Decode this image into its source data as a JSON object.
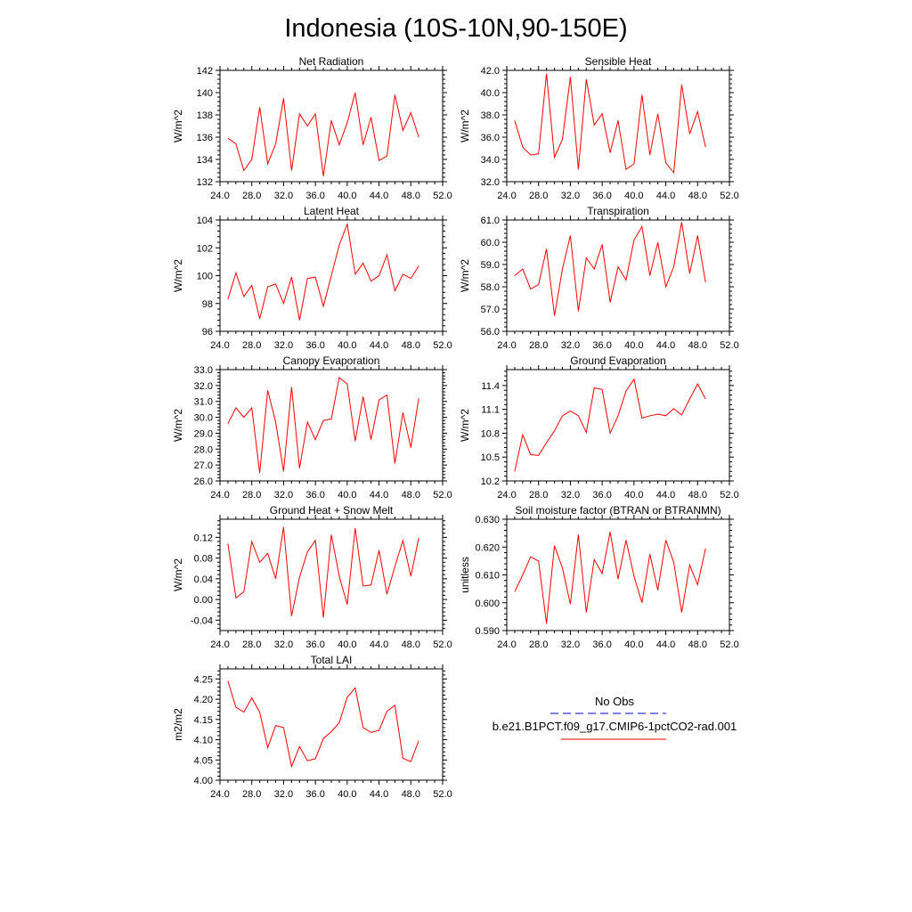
{
  "figure_title": "Indonesia (10S-10N,90-150E)",
  "colors": {
    "model_line": "#ff0000",
    "obs_line": "#0000cc",
    "axes": "#000000"
  },
  "legend": {
    "entries": [
      {
        "label": "No Obs",
        "style": "dashed",
        "color": "#0000cc"
      },
      {
        "label": "b.e21.B1PCT.f09_g17.CMIP6-1pctCO2-rad.001",
        "style": "solid",
        "color": "#ff0000"
      }
    ]
  },
  "chart_data": [
    {
      "type": "line",
      "title": "Net Radiation",
      "ylabel": "W/m^2",
      "xlim": [
        24,
        52
      ],
      "ylim": [
        132,
        142
      ],
      "xticks": [
        24,
        28,
        32,
        36,
        40,
        44,
        48,
        52
      ],
      "xtick_labels": [
        "24.0",
        "28.0",
        "32.0",
        "36.0",
        "40.0",
        "44.0",
        "48.0",
        "52.0"
      ],
      "yticks": [
        132,
        134,
        136,
        138,
        140,
        142
      ],
      "ytick_labels": [
        "132",
        "134",
        "136",
        "138",
        "140",
        "142"
      ],
      "x": [
        25,
        26,
        27,
        28,
        29,
        30,
        31,
        32,
        33,
        34,
        35,
        36,
        37,
        38,
        39,
        40,
        41,
        42,
        43,
        44,
        45,
        46,
        47,
        48,
        49
      ],
      "series": [
        {
          "values": [
            135.9,
            135.4,
            133.0,
            134.0,
            138.7,
            133.6,
            135.4,
            139.5,
            133.0,
            138.1,
            137.0,
            138.1,
            132.5,
            137.5,
            135.3,
            137.3,
            140.0,
            135.3,
            137.8,
            133.9,
            134.3,
            139.8,
            136.6,
            138.2,
            136.0
          ]
        }
      ]
    },
    {
      "type": "line",
      "title": "Sensible Heat",
      "ylabel": "W/m^2",
      "xlim": [
        24,
        52
      ],
      "ylim": [
        32,
        42
      ],
      "xticks": [
        24,
        28,
        32,
        36,
        40,
        44,
        48,
        52
      ],
      "xtick_labels": [
        "24.0",
        "28.0",
        "32.0",
        "36.0",
        "40.0",
        "44.0",
        "48.0",
        "52.0"
      ],
      "yticks": [
        32,
        34,
        36,
        38,
        40,
        42
      ],
      "ytick_labels": [
        "32.0",
        "34.0",
        "36.0",
        "38.0",
        "40.0",
        "42.0"
      ],
      "x": [
        25,
        26,
        27,
        28,
        29,
        30,
        31,
        32,
        33,
        34,
        35,
        36,
        37,
        38,
        39,
        40,
        41,
        42,
        43,
        44,
        45,
        46,
        47,
        48,
        49
      ],
      "series": [
        {
          "values": [
            37.5,
            35.1,
            34.4,
            34.5,
            41.7,
            34.2,
            35.8,
            41.4,
            33.1,
            41.2,
            37.1,
            38.1,
            34.6,
            37.5,
            33.1,
            33.6,
            39.8,
            34.4,
            38.1,
            33.7,
            32.8,
            40.7,
            36.3,
            38.3,
            35.1
          ]
        }
      ]
    },
    {
      "type": "line",
      "title": "Latent Heat",
      "ylabel": "W/m^2",
      "xlim": [
        24,
        52
      ],
      "ylim": [
        96,
        104
      ],
      "xticks": [
        24,
        28,
        32,
        36,
        40,
        44,
        48,
        52
      ],
      "xtick_labels": [
        "24.0",
        "28.0",
        "32.0",
        "36.0",
        "40.0",
        "44.0",
        "48.0",
        "52.0"
      ],
      "yticks": [
        96,
        98,
        100,
        102,
        104
      ],
      "ytick_labels": [
        "96",
        "98",
        "100",
        "102",
        "104"
      ],
      "x": [
        25,
        26,
        27,
        28,
        29,
        30,
        31,
        32,
        33,
        34,
        35,
        36,
        37,
        38,
        39,
        40,
        41,
        42,
        43,
        44,
        45,
        46,
        47,
        48,
        49
      ],
      "series": [
        {
          "values": [
            98.3,
            100.2,
            98.5,
            99.3,
            96.9,
            99.2,
            99.4,
            98.0,
            99.9,
            96.8,
            99.8,
            99.9,
            97.8,
            100.0,
            102.2,
            103.7,
            100.1,
            100.9,
            99.6,
            100.0,
            101.5,
            98.9,
            100.1,
            99.8,
            100.7
          ]
        }
      ]
    },
    {
      "type": "line",
      "title": "Transpiration",
      "ylabel": "W/m^2",
      "xlim": [
        24,
        52
      ],
      "ylim": [
        56,
        61
      ],
      "xticks": [
        24,
        28,
        32,
        36,
        40,
        44,
        48,
        52
      ],
      "xtick_labels": [
        "24.0",
        "28.0",
        "32.0",
        "36.0",
        "40.0",
        "44.0",
        "48.0",
        "52.0"
      ],
      "yticks": [
        56,
        57,
        58,
        59,
        60,
        61
      ],
      "ytick_labels": [
        "56.0",
        "57.0",
        "58.0",
        "59.0",
        "60.0",
        "61.0"
      ],
      "x": [
        25,
        26,
        27,
        28,
        29,
        30,
        31,
        32,
        33,
        34,
        35,
        36,
        37,
        38,
        39,
        40,
        41,
        42,
        43,
        44,
        45,
        46,
        47,
        48,
        49
      ],
      "series": [
        {
          "values": [
            58.5,
            58.8,
            57.9,
            58.1,
            59.7,
            56.7,
            58.8,
            60.3,
            56.9,
            59.3,
            58.8,
            59.9,
            57.3,
            58.9,
            58.3,
            60.1,
            60.7,
            58.5,
            60.0,
            58.0,
            58.9,
            60.9,
            58.6,
            60.3,
            58.2
          ]
        }
      ]
    },
    {
      "type": "line",
      "title": "Canopy Evaporation",
      "ylabel": "W/m^2",
      "xlim": [
        24,
        52
      ],
      "ylim": [
        26,
        33
      ],
      "xticks": [
        24,
        28,
        32,
        36,
        40,
        44,
        48,
        52
      ],
      "xtick_labels": [
        "24.0",
        "28.0",
        "32.0",
        "36.0",
        "40.0",
        "44.0",
        "48.0",
        "52.0"
      ],
      "yticks": [
        26,
        27,
        28,
        29,
        30,
        31,
        32,
        33
      ],
      "ytick_labels": [
        "26.0",
        "27.0",
        "28.0",
        "29.0",
        "30.0",
        "31.0",
        "32.0",
        "33.0"
      ],
      "x": [
        25,
        26,
        27,
        28,
        29,
        30,
        31,
        32,
        33,
        34,
        35,
        36,
        37,
        38,
        39,
        40,
        41,
        42,
        43,
        44,
        45,
        46,
        47,
        48,
        49
      ],
      "series": [
        {
          "values": [
            29.6,
            30.6,
            30.0,
            30.6,
            26.5,
            31.7,
            29.7,
            26.6,
            31.9,
            26.8,
            29.7,
            28.6,
            29.8,
            29.9,
            32.5,
            32.1,
            28.5,
            31.3,
            28.6,
            31.1,
            31.4,
            27.1,
            30.3,
            28.1,
            31.2
          ]
        }
      ]
    },
    {
      "type": "line",
      "title": "Ground Evaporation",
      "ylabel": "W/m^2",
      "xlim": [
        24,
        52
      ],
      "ylim": [
        10.2,
        11.6
      ],
      "xticks": [
        24,
        28,
        32,
        36,
        40,
        44,
        48,
        52
      ],
      "xtick_labels": [
        "24.0",
        "28.0",
        "32.0",
        "36.0",
        "40.0",
        "44.0",
        "48.0",
        "52.0"
      ],
      "yticks": [
        10.2,
        10.5,
        10.8,
        11.1,
        11.4
      ],
      "ytick_labels": [
        "10.2",
        "10.5",
        "10.8",
        "11.1",
        "11.4"
      ],
      "x": [
        25,
        26,
        27,
        28,
        29,
        30,
        31,
        32,
        33,
        34,
        35,
        36,
        37,
        38,
        39,
        40,
        41,
        42,
        43,
        44,
        45,
        46,
        47,
        48,
        49
      ],
      "series": [
        {
          "values": [
            10.32,
            10.78,
            10.53,
            10.52,
            10.68,
            10.83,
            11.02,
            11.08,
            11.02,
            10.81,
            11.37,
            11.35,
            10.8,
            11.02,
            11.33,
            11.48,
            10.99,
            11.02,
            11.04,
            11.02,
            11.11,
            11.03,
            11.23,
            11.42,
            11.23
          ]
        }
      ]
    },
    {
      "type": "line",
      "title": "Ground Heat + Snow Melt",
      "ylabel": "W/m^2",
      "xlim": [
        24,
        52
      ],
      "ylim": [
        -0.06,
        0.155
      ],
      "xticks": [
        24,
        28,
        32,
        36,
        40,
        44,
        48,
        52
      ],
      "xtick_labels": [
        "24.0",
        "28.0",
        "32.0",
        "36.0",
        "40.0",
        "44.0",
        "48.0",
        "52.0"
      ],
      "yticks": [
        -0.04,
        0.0,
        0.04,
        0.08,
        0.12
      ],
      "ytick_labels": [
        "-0.04",
        "0.00",
        "0.04",
        "0.08",
        "0.12"
      ],
      "x": [
        25,
        26,
        27,
        28,
        29,
        30,
        31,
        32,
        33,
        34,
        35,
        36,
        37,
        38,
        39,
        40,
        41,
        42,
        43,
        44,
        45,
        46,
        47,
        48,
        49
      ],
      "series": [
        {
          "values": [
            0.108,
            0.003,
            0.015,
            0.112,
            0.072,
            0.089,
            0.04,
            0.14,
            -0.032,
            0.043,
            0.092,
            0.114,
            -0.035,
            0.125,
            0.045,
            -0.01,
            0.138,
            0.026,
            0.028,
            0.095,
            0.01,
            0.064,
            0.114,
            0.045,
            0.119
          ]
        }
      ]
    },
    {
      "type": "line",
      "title": "Soil moisture factor (BTRAN or BTRANMN)",
      "ylabel": "unitless",
      "xlim": [
        24,
        52
      ],
      "ylim": [
        0.59,
        0.63
      ],
      "xticks": [
        24,
        28,
        32,
        36,
        40,
        44,
        48,
        52
      ],
      "xtick_labels": [
        "24.0",
        "28.0",
        "32.0",
        "36.0",
        "40.0",
        "44.0",
        "48.0",
        "52.0"
      ],
      "yticks": [
        0.59,
        0.6,
        0.61,
        0.62,
        0.63
      ],
      "ytick_labels": [
        "0.590",
        "0.600",
        "0.610",
        "0.620",
        "0.630"
      ],
      "x": [
        25,
        26,
        27,
        28,
        29,
        30,
        31,
        32,
        33,
        34,
        35,
        36,
        37,
        38,
        39,
        40,
        41,
        42,
        43,
        44,
        45,
        46,
        47,
        48,
        49
      ],
      "series": [
        {
          "values": [
            0.604,
            0.61,
            0.6165,
            0.615,
            0.5925,
            0.6205,
            0.6125,
            0.5995,
            0.6245,
            0.5965,
            0.6155,
            0.6105,
            0.6255,
            0.6085,
            0.6225,
            0.6095,
            0.6,
            0.6175,
            0.6045,
            0.6225,
            0.6145,
            0.5965,
            0.6135,
            0.6065,
            0.6195
          ]
        }
      ]
    },
    {
      "type": "line",
      "title": "Total LAI",
      "ylabel": "m2/m2",
      "xlim": [
        24,
        52
      ],
      "ylim": [
        4.0,
        4.275
      ],
      "xticks": [
        24,
        28,
        32,
        36,
        40,
        44,
        48,
        52
      ],
      "xtick_labels": [
        "24.0",
        "28.0",
        "32.0",
        "36.0",
        "40.0",
        "44.0",
        "48.0",
        "52.0"
      ],
      "yticks": [
        4.0,
        4.05,
        4.1,
        4.15,
        4.2,
        4.25
      ],
      "ytick_labels": [
        "4.00",
        "4.05",
        "4.10",
        "4.15",
        "4.20",
        "4.25"
      ],
      "x": [
        25,
        26,
        27,
        28,
        29,
        30,
        31,
        32,
        33,
        34,
        35,
        36,
        37,
        38,
        39,
        40,
        41,
        42,
        43,
        44,
        45,
        46,
        47,
        48,
        49
      ],
      "series": [
        {
          "values": [
            4.245,
            4.18,
            4.168,
            4.203,
            4.168,
            4.08,
            4.135,
            4.13,
            4.034,
            4.083,
            4.048,
            4.053,
            4.103,
            4.12,
            4.142,
            4.205,
            4.228,
            4.13,
            4.118,
            4.123,
            4.17,
            4.185,
            4.054,
            4.046,
            4.098
          ]
        }
      ]
    }
  ]
}
